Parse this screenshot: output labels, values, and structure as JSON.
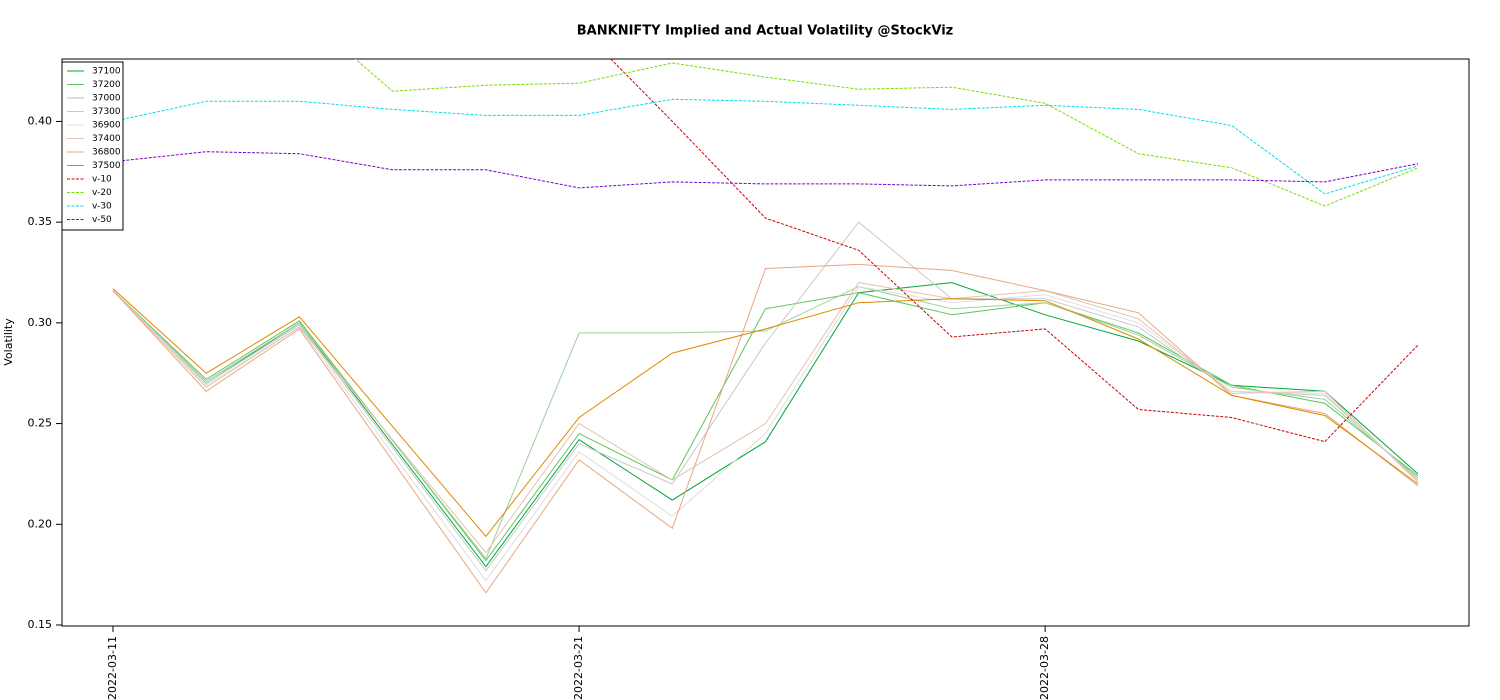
{
  "chart_data": {
    "type": "line",
    "title": "BANKNIFTY Implied and Actual Volatility @StockViz",
    "y_label": "Volatility",
    "categories": [
      "2022-03-11",
      null,
      null,
      null,
      null,
      "2022-03-21",
      null,
      null,
      null,
      null,
      "2022-03-28",
      null,
      null,
      null,
      null
    ],
    "ylim": [
      0.1495,
      0.431
    ],
    "yticks": [
      0.15,
      {
        "value": 0.2,
        "label": "0.20"
      },
      0.25,
      {
        "value": 0.3,
        "label": "0.30"
      },
      0.35,
      {
        "value": 0.4,
        "label": "0.40"
      }
    ],
    "legend": "top-left",
    "series": [
      {
        "name": "37100",
        "color": "#00a83a",
        "x": [
          0,
          1,
          2,
          4,
          5,
          6,
          7,
          8,
          9,
          10,
          11,
          12,
          13,
          14
        ],
        "values": [
          0.316,
          0.27,
          0.3,
          0.179,
          0.242,
          0.212,
          0.241,
          0.315,
          0.32,
          0.304,
          0.291,
          0.269,
          0.266,
          0.225
        ]
      },
      {
        "name": "37200",
        "color": "#5cc45c",
        "x": [
          0,
          1,
          2,
          4,
          5,
          6,
          7,
          8,
          9,
          10,
          11,
          12,
          13,
          14
        ],
        "values": [
          0.316,
          0.272,
          0.301,
          0.182,
          0.245,
          0.222,
          0.307,
          0.315,
          0.304,
          0.31,
          0.295,
          0.269,
          0.26,
          0.224
        ]
      },
      {
        "name": "37000",
        "color": "#9ccf9c",
        "x": [
          0,
          1,
          2,
          4,
          5,
          6,
          7,
          8,
          9,
          10,
          11,
          12,
          13,
          14
        ],
        "values": [
          0.316,
          0.271,
          0.3,
          0.183,
          0.295,
          0.295,
          0.296,
          0.318,
          0.307,
          0.31,
          0.294,
          0.268,
          0.262,
          0.223
        ]
      },
      {
        "name": "37300",
        "color": "#c8c8c8",
        "x": [
          0,
          1,
          2,
          4,
          5,
          6,
          7,
          8,
          9,
          10,
          11,
          12,
          13,
          14
        ],
        "values": [
          0.316,
          0.27,
          0.299,
          0.177,
          0.24,
          0.22,
          0.29,
          0.35,
          0.312,
          0.312,
          0.298,
          0.266,
          0.264,
          0.222
        ]
      },
      {
        "name": "36900",
        "color": "#dedede",
        "x": [
          0,
          1,
          2,
          4,
          5,
          6,
          7,
          8,
          9,
          10,
          11,
          12,
          13,
          14
        ],
        "values": [
          0.316,
          0.269,
          0.298,
          0.172,
          0.236,
          0.204,
          0.245,
          0.318,
          0.31,
          0.314,
          0.3,
          0.266,
          0.265,
          0.221
        ]
      },
      {
        "name": "37400",
        "color": "#e2c4ae",
        "x": [
          0,
          1,
          2,
          4,
          5,
          6,
          7,
          8,
          9,
          10,
          11,
          12,
          13,
          14
        ],
        "values": [
          0.316,
          0.268,
          0.298,
          0.186,
          0.25,
          0.222,
          0.25,
          0.32,
          0.312,
          0.316,
          0.302,
          0.265,
          0.266,
          0.221
        ]
      },
      {
        "name": "36800",
        "color": "#e8a880",
        "x": [
          0,
          1,
          2,
          4,
          5,
          6,
          7,
          8,
          9,
          10,
          11,
          12,
          13,
          14
        ],
        "values": [
          0.316,
          0.266,
          0.297,
          0.166,
          0.232,
          0.198,
          0.327,
          0.329,
          0.326,
          0.316,
          0.305,
          0.264,
          0.255,
          0.219
        ]
      },
      {
        "name": "37500",
        "color": "#e08800",
        "x": [
          0,
          1,
          2,
          4,
          5,
          6,
          7,
          8,
          9,
          10,
          11,
          12,
          13,
          14
        ],
        "values": [
          0.317,
          0.275,
          0.303,
          0.194,
          0.253,
          0.285,
          0.297,
          0.31,
          0.312,
          0.311,
          0.292,
          0.264,
          0.254,
          0.22
        ]
      },
      {
        "name": "v-10",
        "color": "#cc0000",
        "dashed": true,
        "values": [
          null,
          null,
          null,
          null,
          null,
          0.447,
          0.4,
          0.352,
          0.336,
          0.293,
          0.297,
          0.257,
          0.253,
          0.241,
          0.289
        ]
      },
      {
        "name": "v-20",
        "color": "#77dd00",
        "dashed": true,
        "values": [
          null,
          null,
          0.455,
          0.415,
          0.418,
          0.419,
          0.429,
          0.422,
          0.416,
          0.417,
          0.409,
          0.384,
          0.377,
          0.358,
          0.377
        ]
      },
      {
        "name": "v-30",
        "color": "#00dded",
        "dashed": true,
        "values": [
          0.4,
          0.41,
          0.41,
          0.406,
          0.403,
          0.403,
          0.411,
          0.41,
          0.408,
          0.406,
          0.408,
          0.406,
          0.398,
          0.364,
          0.378
        ]
      },
      {
        "name": "v-50",
        "color": "#7700cc",
        "dashed": true,
        "values": [
          0.38,
          0.385,
          0.384,
          0.376,
          0.376,
          0.367,
          0.37,
          0.369,
          0.369,
          0.368,
          0.371,
          0.371,
          0.371,
          0.37,
          0.379
        ]
      }
    ]
  }
}
